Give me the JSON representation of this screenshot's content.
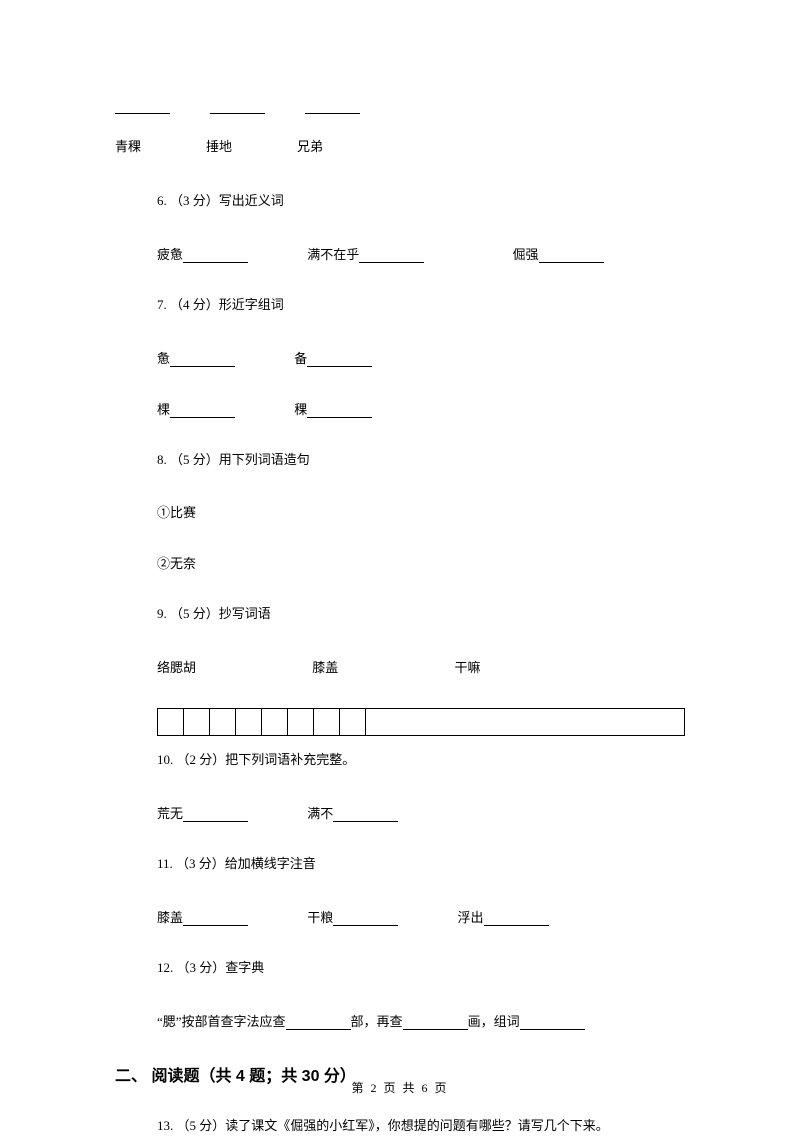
{
  "topRow": {
    "w1": "青稞",
    "w2": "捶地",
    "w3": "兄弟"
  },
  "q6": {
    "num": "6. （3 分）写出近义词",
    "a": "疲惫",
    "b": "满不在乎",
    "c": "倔强"
  },
  "q7": {
    "num": "7. （4 分）形近字组词",
    "a": "惫",
    "b": "备",
    "c": "棵",
    "d": "稞"
  },
  "q8": {
    "num": "8. （5 分）用下列词语造句",
    "a": "①比赛",
    "b": "②无奈"
  },
  "q9": {
    "num": "9. （5 分）抄写词语",
    "a": "络腮胡",
    "b": "膝盖",
    "c": "干嘛"
  },
  "q10": {
    "num": "10. （2 分）把下列词语补充完整。",
    "a": "荒无",
    "b": "满不"
  },
  "q11": {
    "num": "11. （3 分）给加横线字注音",
    "a": "膝盖",
    "b": "干粮",
    "c": "浮出"
  },
  "q12": {
    "num": "12. （3 分）查字典",
    "t1": "“腮”按部首查字法应查",
    "t2": "部，再查",
    "t3": "画，组词"
  },
  "section2": "二、 阅读题（共 4 题；共 30 分）",
  "q13": {
    "num": "13. （5 分）读了课文《倔强的小红军》，你想提的问题有哪些？请写几个下来。"
  },
  "footer": "第 2 页 共 6 页"
}
